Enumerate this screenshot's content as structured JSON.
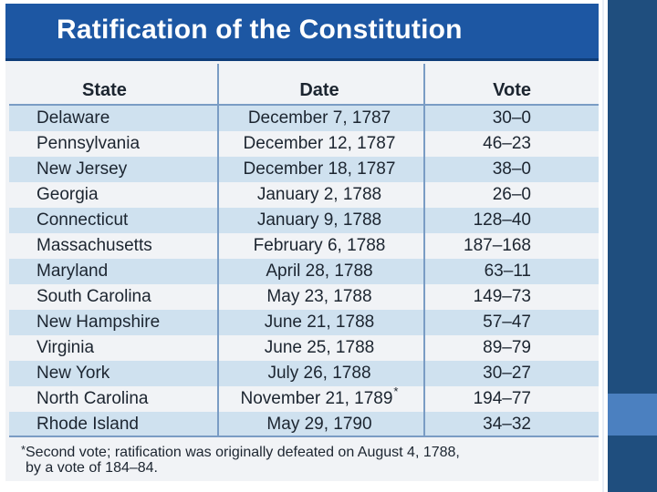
{
  "title": "Ratification of the Constitution",
  "columns": [
    "State",
    "Date",
    "Vote"
  ],
  "rows": [
    {
      "state": "Delaware",
      "date": "December 7, 1787",
      "vote": "30–0"
    },
    {
      "state": "Pennsylvania",
      "date": "December 12, 1787",
      "vote": "46–23"
    },
    {
      "state": "New Jersey",
      "date": "December 18, 1787",
      "vote": "38–0"
    },
    {
      "state": "Georgia",
      "date": "January 2, 1788",
      "vote": "26–0"
    },
    {
      "state": "Connecticut",
      "date": "January 9, 1788",
      "vote": "128–40"
    },
    {
      "state": "Massachusetts",
      "date": "February 6, 1788",
      "vote": "187–168"
    },
    {
      "state": "Maryland",
      "date": "April 28, 1788",
      "vote": "63–11"
    },
    {
      "state": "South Carolina",
      "date": "May 23, 1788",
      "vote": "149–73"
    },
    {
      "state": "New Hampshire",
      "date": "June 21, 1788",
      "vote": "57–47"
    },
    {
      "state": "Virginia",
      "date": "June 25, 1788",
      "vote": "89–79"
    },
    {
      "state": "New York",
      "date": "July 26, 1788",
      "vote": "30–27"
    },
    {
      "state": "North Carolina",
      "date": "November 21, 1789",
      "date_marker": "*",
      "vote": "194–77"
    },
    {
      "state": "Rhode Island",
      "date": "May 29, 1790",
      "vote": "34–32"
    }
  ],
  "footnote": {
    "marker": "*",
    "line1": "Second vote; ratification was originally defeated on  August 4, 1788,",
    "line2": "by a vote of 184–84."
  },
  "colors": {
    "title_bar": "#1d57a3",
    "row_shade": "#cfe1ef",
    "side_band": "#1f4e7e",
    "side_accent": "#4b80c0"
  }
}
